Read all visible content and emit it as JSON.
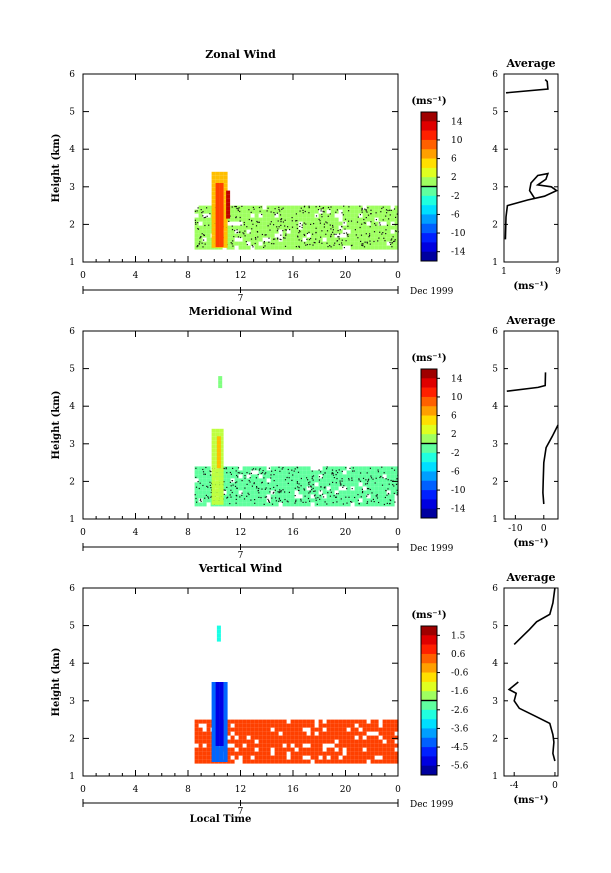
{
  "chart_data": [
    {
      "type": "heatmap",
      "title": "Zonal Wind",
      "ylabel": "Height (km)",
      "xlabel": "",
      "xlim": [
        0,
        24
      ],
      "ylim": [
        1,
        6
      ],
      "x_ticks": [
        "0",
        "4",
        "8",
        "12",
        "16",
        "20",
        "0"
      ],
      "y_ticks": [
        "1",
        "2",
        "3",
        "4",
        "5",
        "6"
      ],
      "date_axis": {
        "tick_label": "7",
        "date_label": "Dec 1999"
      },
      "colorbar": {
        "unit": "(ms⁻¹)",
        "ticks": [
          "14",
          "10",
          "6",
          "2",
          "-2",
          "-6",
          "-10",
          "-14"
        ],
        "min": -16,
        "max": 16
      },
      "regions": [
        {
          "x0": 8.5,
          "x1": 24,
          "y0": 1.4,
          "y1": 2.5,
          "value": 1
        },
        {
          "x0": 9.8,
          "x1": 10.8,
          "y0": 1.4,
          "y1": 3.4,
          "value": 6
        },
        {
          "x0": 10.1,
          "x1": 10.6,
          "y0": 1.5,
          "y1": 3.1,
          "value": 10
        },
        {
          "x0": 10.9,
          "x1": 11.2,
          "y0": 2.2,
          "y1": 2.9,
          "value": 14
        }
      ],
      "average": {
        "title": "Average",
        "xlabel": "(ms⁻¹)",
        "xlim": [
          1,
          9
        ],
        "ylim": [
          1,
          6
        ],
        "x_ticks": [
          "1",
          "9"
        ],
        "y_ticks": [
          "1",
          "2",
          "3",
          "4",
          "5",
          "6"
        ],
        "profile": [
          [
            1.2,
            1.6
          ],
          [
            1.3,
            2.2
          ],
          [
            1.5,
            2.5
          ],
          [
            4.5,
            2.65
          ],
          [
            7,
            2.75
          ],
          [
            8.8,
            2.9
          ],
          [
            8,
            3.0
          ],
          [
            6,
            3.05
          ],
          [
            7.2,
            3.2
          ],
          [
            7.5,
            3.35
          ],
          [
            6,
            3.3
          ],
          [
            5,
            3.1
          ],
          [
            4.8,
            2.9
          ],
          [
            5.5,
            2.7
          ]
        ],
        "profile_upper": [
          [
            1.3,
            5.5
          ],
          [
            7.5,
            5.6
          ],
          [
            7.4,
            5.8
          ],
          [
            7.1,
            5.85
          ]
        ]
      }
    },
    {
      "type": "heatmap",
      "title": "Meridional Wind",
      "ylabel": "Height (km)",
      "xlabel": "",
      "xlim": [
        0,
        24
      ],
      "ylim": [
        1,
        6
      ],
      "x_ticks": [
        "0",
        "4",
        "8",
        "12",
        "16",
        "20",
        "0"
      ],
      "y_ticks": [
        "1",
        "2",
        "3",
        "4",
        "5",
        "6"
      ],
      "date_axis": {
        "tick_label": "7",
        "date_label": "Dec 1999"
      },
      "colorbar": {
        "unit": "(ms⁻¹)",
        "ticks": [
          "14",
          "10",
          "6",
          "2",
          "-2",
          "-6",
          "-10",
          "-14"
        ],
        "min": -16,
        "max": 16
      },
      "regions": [
        {
          "x0": 8.5,
          "x1": 24,
          "y0": 1.4,
          "y1": 2.4,
          "value": -1
        },
        {
          "x0": 9.8,
          "x1": 10.7,
          "y0": 1.4,
          "y1": 3.4,
          "value": 2
        },
        {
          "x0": 10.2,
          "x1": 10.5,
          "y0": 2.4,
          "y1": 3.2,
          "value": 6
        },
        {
          "x0": 10.3,
          "x1": 10.5,
          "y0": 4.5,
          "y1": 4.8,
          "value": 0
        }
      ],
      "average": {
        "title": "Average",
        "xlabel": "(ms⁻¹)",
        "xlim": [
          -14,
          5
        ],
        "ylim": [
          1,
          6
        ],
        "x_ticks": [
          "-10",
          "0"
        ],
        "y_ticks": [
          "1",
          "2",
          "3",
          "4",
          "5",
          "6"
        ],
        "profile": [
          [
            0,
            1.4
          ],
          [
            -0.3,
            1.7
          ],
          [
            -0.2,
            2.0
          ],
          [
            0,
            2.5
          ],
          [
            0.8,
            2.9
          ],
          [
            3,
            3.2
          ],
          [
            5,
            3.5
          ]
        ],
        "profile_upper": [
          [
            -13,
            4.4
          ],
          [
            -2,
            4.5
          ],
          [
            0.5,
            4.55
          ],
          [
            0.6,
            4.9
          ]
        ]
      }
    },
    {
      "type": "heatmap",
      "title": "Vertical Wind",
      "ylabel": "Height (km)",
      "xlabel": "Local Time",
      "xlim": [
        0,
        24
      ],
      "ylim": [
        1,
        6
      ],
      "x_ticks": [
        "0",
        "4",
        "8",
        "12",
        "16",
        "20",
        "0"
      ],
      "y_ticks": [
        "1",
        "2",
        "3",
        "4",
        "5",
        "6"
      ],
      "date_axis": {
        "tick_label": "7",
        "date_label": "Dec 1999"
      },
      "colorbar": {
        "unit": "(ms⁻¹)",
        "ticks": [
          "1.5",
          "0.6",
          "-0.6",
          "-1.6",
          "-2.6",
          "-3.6",
          "-4.5",
          "-5.6"
        ],
        "min": -6.0,
        "max": 2.0
      },
      "regions": [
        {
          "x0": 8.5,
          "x1": 24,
          "y0": 1.4,
          "y1": 2.5,
          "value": 0.5
        },
        {
          "x0": 9.8,
          "x1": 10.9,
          "y0": 1.4,
          "y1": 3.5,
          "value": -4.2
        },
        {
          "x0": 10.1,
          "x1": 10.6,
          "y0": 1.8,
          "y1": 3.5,
          "value": -5.2
        },
        {
          "x0": 10.2,
          "x1": 10.4,
          "y0": 4.6,
          "y1": 5.0,
          "value": -2.8
        }
      ],
      "average": {
        "title": "Average",
        "xlabel": "(ms⁻¹)",
        "xlim": [
          -5,
          0.3
        ],
        "ylim": [
          1,
          6
        ],
        "x_ticks": [
          "-4",
          "0"
        ],
        "y_ticks": [
          "1",
          "2",
          "3",
          "4",
          "5",
          "6"
        ],
        "profile": [
          [
            0,
            1.4
          ],
          [
            -0.2,
            1.6
          ],
          [
            -0.1,
            1.9
          ],
          [
            -0.2,
            2.1
          ],
          [
            -0.5,
            2.4
          ],
          [
            -2,
            2.6
          ],
          [
            -3.5,
            2.8
          ],
          [
            -4,
            3.0
          ],
          [
            -3.8,
            3.2
          ],
          [
            -4.5,
            3.3
          ],
          [
            -3.6,
            3.5
          ]
        ],
        "profile_upper": [
          [
            -4,
            4.5
          ],
          [
            -2.5,
            4.9
          ],
          [
            -1.8,
            5.1
          ],
          [
            -0.5,
            5.3
          ],
          [
            -0.2,
            5.6
          ],
          [
            0,
            6.0
          ]
        ]
      }
    }
  ]
}
